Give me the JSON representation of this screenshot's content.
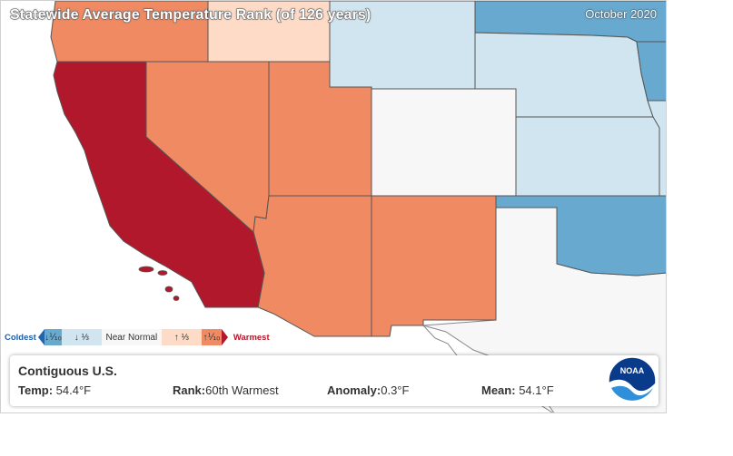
{
  "map": {
    "title": "Statewide Average Temperature Rank (of 126 years)",
    "date": "October 2020"
  },
  "legend": {
    "coldest_label": "Coldest",
    "warmest_label": "Warmest",
    "categories": [
      {
        "label": "↓⅒",
        "color": "#67a9cf",
        "meaning": "record coldest 10%"
      },
      {
        "label": "↓ ⅓",
        "color": "#d1e5f0",
        "meaning": "below normal"
      },
      {
        "label": "Near Normal",
        "color": "#f7f7f7",
        "meaning": "near normal"
      },
      {
        "label": "↑ ⅓",
        "color": "#fddbc7",
        "meaning": "above normal"
      },
      {
        "label": "↑⅒",
        "color": "#ef8a62",
        "meaning": "warmest 10%"
      }
    ],
    "record_cold_color": "#2166ac",
    "record_warm_color": "#b2182b"
  },
  "states": [
    {
      "name": "California",
      "category": "record warmest",
      "color": "#b2182b"
    },
    {
      "name": "Oregon",
      "category": "warmest 10%",
      "color": "#ef8a62"
    },
    {
      "name": "Nevada",
      "category": "warmest 10%",
      "color": "#ef8a62"
    },
    {
      "name": "Utah",
      "category": "warmest 10%",
      "color": "#ef8a62"
    },
    {
      "name": "Arizona",
      "category": "warmest 10%",
      "color": "#ef8a62"
    },
    {
      "name": "New Mexico",
      "category": "warmest 10%",
      "color": "#ef8a62"
    },
    {
      "name": "Idaho",
      "category": "above normal",
      "color": "#fddbc7"
    },
    {
      "name": "Wyoming",
      "category": "below normal",
      "color": "#d1e5f0"
    },
    {
      "name": "Colorado",
      "category": "near normal",
      "color": "#f7f7f7"
    },
    {
      "name": "Nebraska",
      "category": "below normal",
      "color": "#d1e5f0"
    },
    {
      "name": "Kansas",
      "category": "below normal",
      "color": "#d1e5f0"
    },
    {
      "name": "South Dakota",
      "category": "coldest 10%",
      "color": "#67a9cf"
    },
    {
      "name": "Oklahoma",
      "category": "coldest 10%",
      "color": "#67a9cf"
    },
    {
      "name": "Iowa",
      "category": "coldest 10%",
      "color": "#67a9cf"
    },
    {
      "name": "Texas",
      "category": "not shown",
      "color": "#f7f7f7"
    }
  ],
  "info": {
    "region": "Contiguous U.S.",
    "temp_label": "Temp:",
    "temp_value": "54.4°F",
    "rank_label": "Rank:",
    "rank_value": "60th Warmest",
    "anomaly_label": "Anomaly:",
    "anomaly_value": "0.3°F",
    "mean_label": "Mean:",
    "mean_value": "54.1°F"
  },
  "logo": {
    "text": "NOAA"
  }
}
